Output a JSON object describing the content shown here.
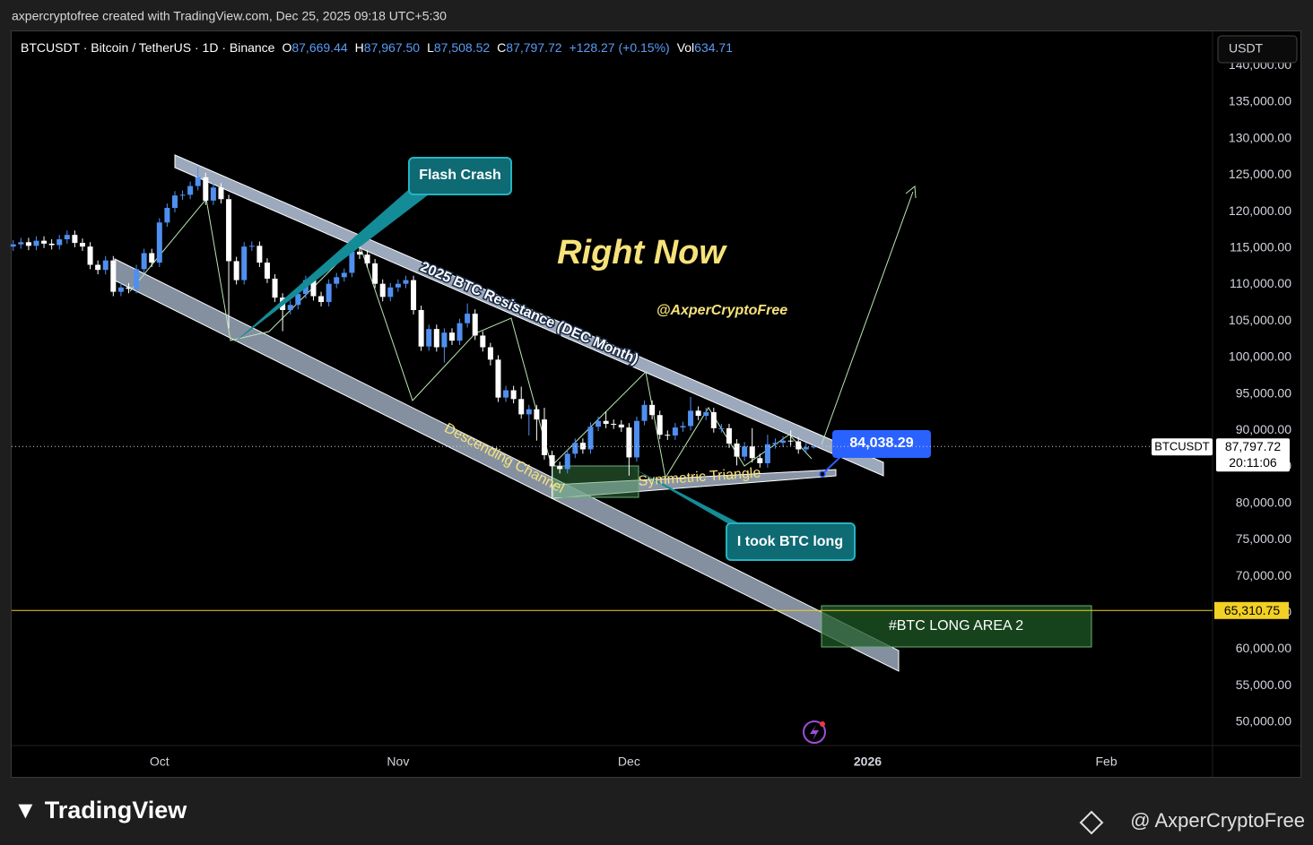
{
  "page": {
    "header": "axpercryptofree created with TradingView.com, Dec 25, 2025 09:18 UTC+5:30",
    "footer_logo": "TradingView",
    "footer_author": "@ AxperCryptoFree",
    "currency_button": "USDT"
  },
  "chart_data": {
    "type": "candlestick",
    "legend": {
      "symbol": "BTCUSDT · Bitcoin / TetherUS · 1D · Binance",
      "items": [
        {
          "key": "O",
          "value": "87,669.44"
        },
        {
          "key": "H",
          "value": "87,967.50"
        },
        {
          "key": "L",
          "value": "87,508.52"
        },
        {
          "key": "C",
          "value": "87,797.72"
        }
      ],
      "change": "+128.27 (+0.15%)",
      "volume_key": "Vol",
      "volume": "634.71"
    },
    "up_color": "#4f8ff0",
    "down_color": "#ffffff",
    "open": [
      115200,
      115500,
      115800,
      115300,
      116000,
      115600,
      115400,
      116200,
      116800,
      115700,
      115200,
      112700,
      112000,
      113300,
      109000,
      109600,
      109400,
      112100,
      114300,
      113000,
      118500,
      120500,
      122200,
      122300,
      123500,
      124700,
      121500,
      123300,
      121700,
      113200,
      110600,
      115200,
      115300,
      113000,
      110800,
      108200,
      106500,
      107200,
      108700,
      110600,
      108400,
      107600,
      110100,
      111000,
      111600,
      114500,
      114100,
      112900,
      110100,
      108300,
      109600,
      110100,
      110600,
      106500,
      101500,
      103900,
      101400,
      103400,
      102300,
      104700,
      106000,
      103000,
      101400,
      99700,
      94500,
      95500,
      94300,
      92200,
      92900,
      91500,
      86600,
      85100,
      84700,
      86800,
      88300,
      87400,
      90500,
      91300,
      90900,
      90800,
      90400,
      86300,
      91300,
      93500,
      92100,
      89400,
      89300,
      90400,
      90600,
      92700,
      92000,
      92500,
      90300,
      90300,
      88200,
      86400,
      87800,
      86200,
      85500,
      88100,
      88300,
      88600,
      88500,
      87400,
      87669.44
    ],
    "high": [
      116100,
      116400,
      116400,
      116600,
      116600,
      116200,
      116800,
      117400,
      117400,
      116300,
      115800,
      113300,
      113900,
      113900,
      110200,
      110200,
      112700,
      114900,
      114900,
      119100,
      121100,
      122800,
      122900,
      124100,
      126100,
      125300,
      123900,
      123900,
      122300,
      113800,
      115800,
      115900,
      115900,
      113600,
      111400,
      108800,
      107800,
      109300,
      111200,
      111200,
      109000,
      110700,
      111600,
      112200,
      115100,
      116400,
      114700,
      113500,
      110700,
      110200,
      110700,
      111200,
      111200,
      107100,
      104500,
      104500,
      104000,
      104000,
      105300,
      107400,
      106600,
      103600,
      102000,
      100300,
      96100,
      96100,
      96000,
      93500,
      93500,
      93100,
      87200,
      85700,
      87400,
      88900,
      88900,
      91100,
      91900,
      92600,
      91500,
      91400,
      91000,
      91900,
      94100,
      94100,
      92700,
      90000,
      91000,
      91200,
      94600,
      93300,
      93100,
      93100,
      90900,
      90900,
      88800,
      88400,
      90300,
      86800,
      89400,
      88900,
      89200,
      90000,
      89100,
      88300,
      87967.5
    ],
    "low": [
      114600,
      114900,
      114700,
      114700,
      115000,
      114800,
      114800,
      115600,
      115100,
      114600,
      112100,
      111400,
      111400,
      108400,
      108400,
      108800,
      108800,
      111500,
      112400,
      112400,
      117900,
      119900,
      121600,
      121700,
      122900,
      120900,
      120900,
      121100,
      104000,
      110000,
      110000,
      114600,
      112400,
      110200,
      107600,
      103600,
      105900,
      106600,
      108100,
      107800,
      107000,
      107000,
      109500,
      110400,
      111000,
      113500,
      112300,
      109500,
      107700,
      107700,
      109000,
      109500,
      105900,
      100900,
      100900,
      100800,
      99300,
      101700,
      101700,
      104100,
      102400,
      100800,
      98900,
      93900,
      93900,
      93700,
      91600,
      89300,
      88600,
      86000,
      80600,
      84100,
      84100,
      86200,
      86800,
      86800,
      89900,
      90300,
      90200,
      89800,
      83800,
      85700,
      90700,
      91500,
      88800,
      88700,
      88700,
      89800,
      90000,
      91400,
      91400,
      89700,
      89700,
      87600,
      85200,
      85800,
      85600,
      84900,
      84900,
      87500,
      87700,
      87900,
      86800,
      86800,
      87508.52
    ],
    "close": [
      115500,
      115800,
      115300,
      116000,
      115600,
      115400,
      116200,
      116800,
      115700,
      115200,
      112700,
      112000,
      113300,
      109000,
      109600,
      109400,
      112100,
      114300,
      113000,
      118500,
      120500,
      122200,
      122300,
      123500,
      124700,
      121500,
      123300,
      121700,
      113200,
      110600,
      115200,
      115300,
      113000,
      110800,
      108200,
      106500,
      107200,
      108700,
      110600,
      108400,
      107600,
      110100,
      111000,
      111600,
      114500,
      114100,
      112900,
      110100,
      108300,
      109600,
      110100,
      110600,
      106500,
      101500,
      103900,
      101400,
      103400,
      102300,
      104700,
      106000,
      103000,
      101400,
      99700,
      94500,
      95500,
      94300,
      92200,
      92900,
      91500,
      86600,
      85100,
      84700,
      86800,
      88300,
      87400,
      90500,
      91300,
      90900,
      90800,
      90400,
      86300,
      91300,
      93500,
      92100,
      89400,
      89300,
      90400,
      90600,
      92700,
      92000,
      92500,
      90300,
      90300,
      88200,
      86400,
      87800,
      86200,
      85500,
      88100,
      88300,
      88600,
      88500,
      87400,
      87700,
      87797.72
    ],
    "xlim": [
      -0.2,
      155.8
    ],
    "xticks": [
      {
        "value": 19,
        "label": "Oct"
      },
      {
        "value": 50,
        "label": "Nov"
      },
      {
        "value": 80,
        "label": "Dec"
      },
      {
        "value": 111,
        "label": "2026"
      },
      {
        "value": 142,
        "label": "Feb"
      }
    ],
    "ylim": [
      46800,
      144700
    ],
    "yticks": [
      {
        "value": 50000,
        "label": "50,000.00"
      },
      {
        "value": 55000,
        "label": "55,000.00"
      },
      {
        "value": 60000,
        "label": "60,000.00"
      },
      {
        "value": 65000,
        "label": "65,000.00"
      },
      {
        "value": 70000,
        "label": "70,000.00"
      },
      {
        "value": 75000,
        "label": "75,000.00"
      },
      {
        "value": 80000,
        "label": "80,000.00"
      },
      {
        "value": 85000,
        "label": "85,000.00"
      },
      {
        "value": 90000,
        "label": "90,000.00"
      },
      {
        "value": 95000,
        "label": "95,000.00"
      },
      {
        "value": 100000,
        "label": "100,000.00"
      },
      {
        "value": 105000,
        "label": "105,000.00"
      },
      {
        "value": 110000,
        "label": "110,000.00"
      },
      {
        "value": 115000,
        "label": "115,000.00"
      },
      {
        "value": 120000,
        "label": "120,000.00"
      },
      {
        "value": 125000,
        "label": "125,000.00"
      },
      {
        "value": 130000,
        "label": "130,000.00"
      },
      {
        "value": 135000,
        "label": "135,000.00"
      },
      {
        "value": 140000,
        "label": "140,000.00"
      }
    ],
    "grid": false,
    "last_price": {
      "value": 87797.72,
      "label": "87,797.72",
      "symbol": "BTCUSDT",
      "countdown": "20:11:06"
    },
    "hline": {
      "value": 65310.75,
      "label": "65,310.75",
      "color": "#f2d024"
    },
    "annotations": {
      "flash_crash": "Flash Crash",
      "right_now": "Right Now",
      "handle": "@AxperCryptoFree",
      "resistance": "2025 BTC Resistance (DEC Month)",
      "channel": "Descending Channel",
      "triangle": "Symmetric Triangle",
      "long": "I took BTC long",
      "long_area": "#BTC LONG AREA 2",
      "price_callout": "84,038.29"
    }
  }
}
